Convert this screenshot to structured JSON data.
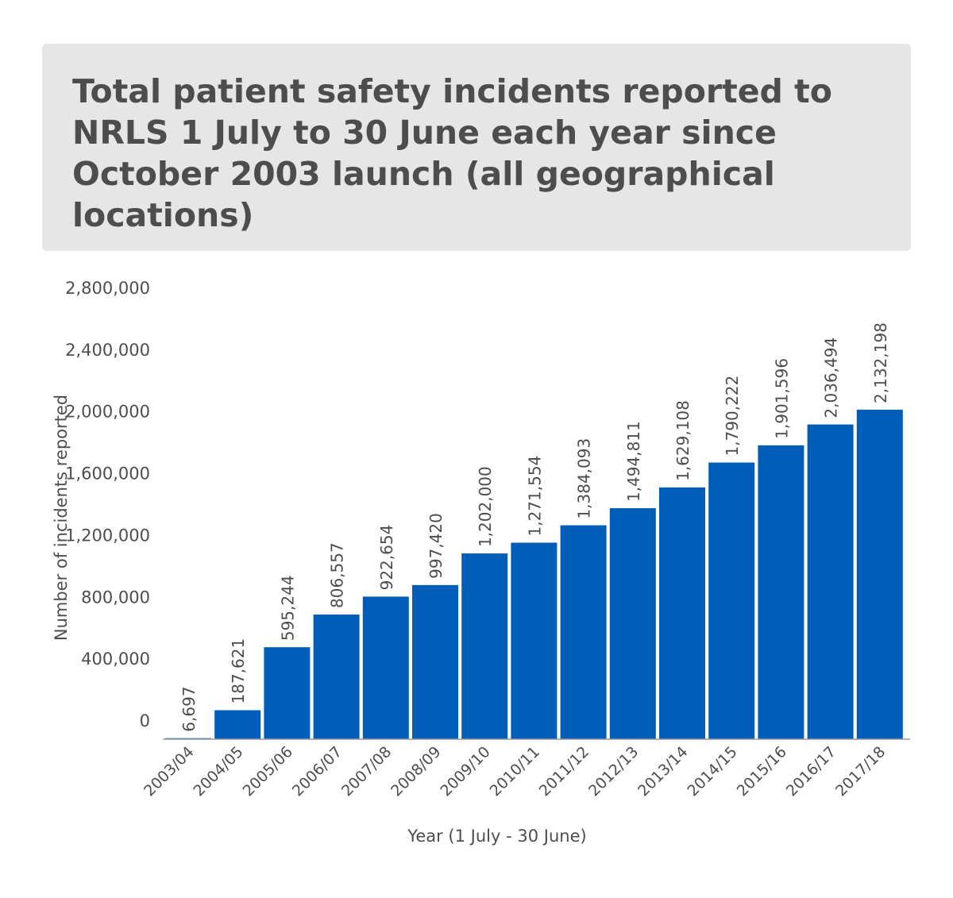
{
  "chart_data": {
    "type": "bar",
    "title": "Total patient safety incidents reported to NRLS 1 July to 30 June each year since October 2003 launch (all geographical locations)",
    "xlabel": "Year (1 July - 30 June)",
    "ylabel": "Number of incidents reported",
    "ylim": [
      0,
      2800000
    ],
    "yticks": [
      0,
      400000,
      800000,
      1200000,
      1600000,
      2000000,
      2400000,
      2800000
    ],
    "ytick_labels": [
      "0",
      "400,000",
      "800,000",
      "1,200,000",
      "1,600,000",
      "2,000,000",
      "2,400,000",
      "2,800,000"
    ],
    "categories": [
      "2003/04",
      "2004/05",
      "2005/06",
      "2006/07",
      "2007/08",
      "2008/09",
      "2009/10",
      "2010/11",
      "2011/12",
      "2012/13",
      "2013/14",
      "2014/15",
      "2015/16",
      "2016/17",
      "2017/18"
    ],
    "values": [
      6697,
      187621,
      595244,
      806557,
      922654,
      997420,
      1202000,
      1271554,
      1384093,
      1494811,
      1629108,
      1790222,
      1901596,
      2036494,
      2132198
    ],
    "value_labels": [
      "6,697",
      "187,621",
      "595,244",
      "806,557",
      "922,654",
      "997,420",
      "1,202,000",
      "1,271,554",
      "1,384,093",
      "1,494,811",
      "1,629,108",
      "1,790,222",
      "1,901,596",
      "2,036,494",
      "2,132,198"
    ],
    "bar_color": "#005eb8",
    "grid": false,
    "legend": "none"
  }
}
